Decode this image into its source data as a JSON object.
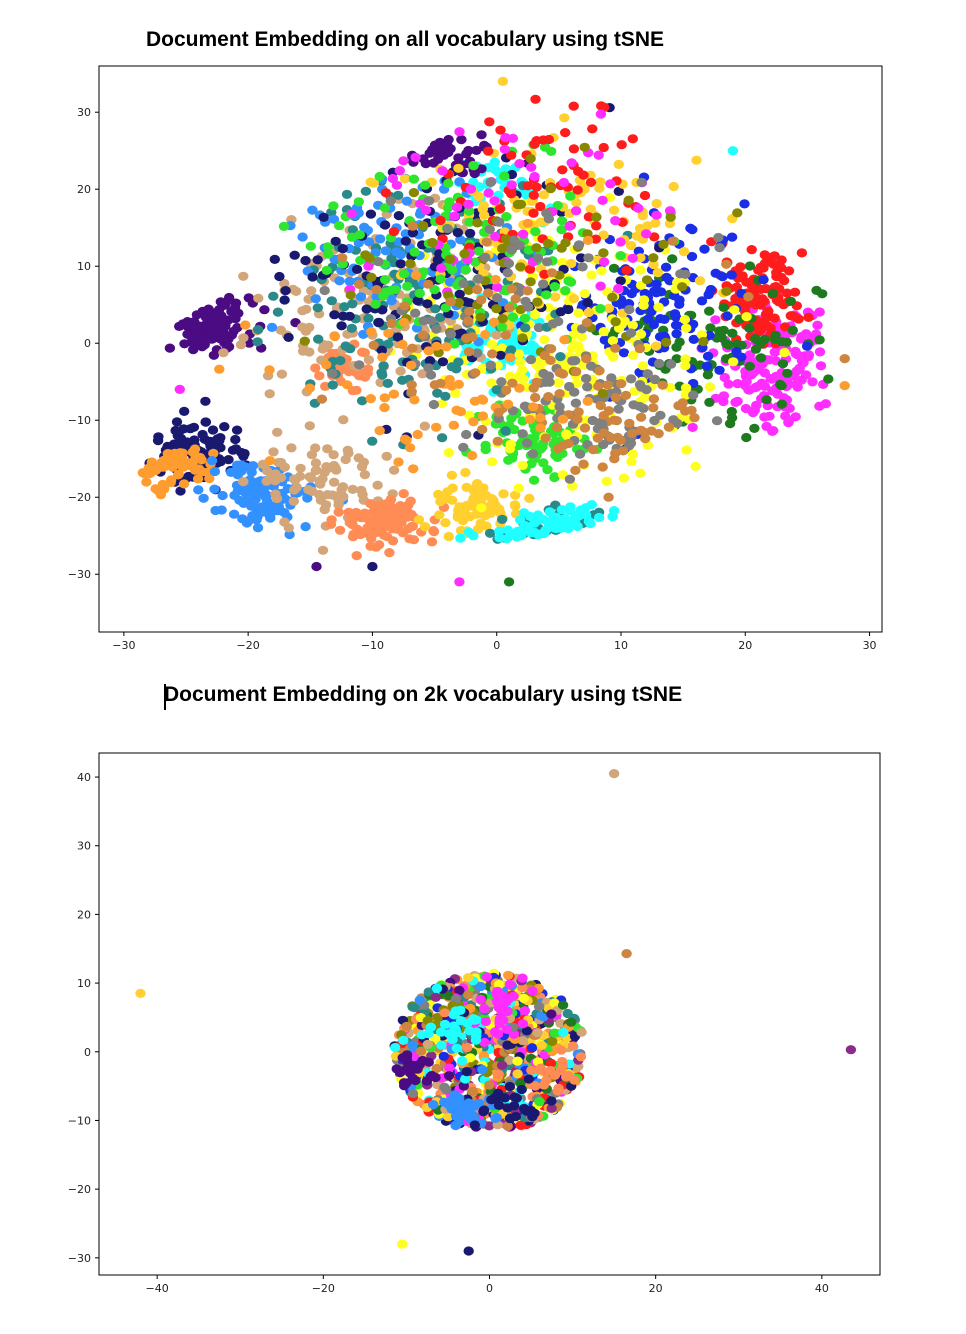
{
  "document": {
    "title_1": "Document Embedding on all vocabulary using tSNE",
    "title_2": "Document Embedding on 2k vocabulary using tSNE"
  },
  "palette": [
    "#ff1c1c",
    "#ffff1f",
    "#1a2ee6",
    "#1f7a1f",
    "#20ffff",
    "#ff2dff",
    "#ffd02e",
    "#808080",
    "#d2a679",
    "#191970",
    "#3390ff",
    "#ff8c55",
    "#2ee62e",
    "#4b0b82",
    "#2a8a8a",
    "#ff9c30",
    "#cd853f",
    "#888800",
    "#8b2c8b"
  ],
  "chart_data": [
    {
      "type": "scatter",
      "title": "Document Embedding on all vocabulary using tSNE",
      "xlabel": "",
      "ylabel": "",
      "xlim": [
        -32,
        31
      ],
      "ylim": [
        -37.5,
        36
      ],
      "xticks": [
        -30,
        -20,
        -10,
        0,
        10,
        20,
        30
      ],
      "yticks": [
        -30,
        -20,
        -10,
        0,
        10,
        20,
        30
      ],
      "grid": false,
      "legend": "none",
      "clusters": [
        {
          "color": "#4b0b82",
          "center": [
            -23,
            2
          ],
          "spread": [
            2.5,
            2.5
          ],
          "n": 110
        },
        {
          "color": "#191970",
          "center": [
            -24,
            -14
          ],
          "spread": [
            3,
            3
          ],
          "n": 110
        },
        {
          "color": "#ff9c30",
          "center": [
            -26,
            -16
          ],
          "spread": [
            2.5,
            2.0
          ],
          "n": 60
        },
        {
          "color": "#3390ff",
          "center": [
            -19,
            -20
          ],
          "spread": [
            3,
            3
          ],
          "n": 120
        },
        {
          "color": "#d2a679",
          "center": [
            -14,
            -18
          ],
          "spread": [
            4,
            4
          ],
          "n": 80
        },
        {
          "color": "#ff8c55",
          "center": [
            -9,
            -23
          ],
          "spread": [
            2.5,
            2.5
          ],
          "n": 110
        },
        {
          "color": "#ff8c55",
          "center": [
            -12,
            -3
          ],
          "spread": [
            1.6,
            2
          ],
          "n": 40
        },
        {
          "color": "#ffd02e",
          "center": [
            -2,
            -21
          ],
          "spread": [
            2.5,
            2.5
          ],
          "n": 70
        },
        {
          "color": "#2a8a8a",
          "center": [
            6,
            -28
          ],
          "spread": [
            4,
            3
          ],
          "n": 110
        },
        {
          "color": "#20ffff",
          "center": [
            6,
            -27
          ],
          "spread": [
            4,
            3
          ],
          "n": 90
        },
        {
          "color": "#ff2dff",
          "center": [
            22,
            -3
          ],
          "spread": [
            3,
            6
          ],
          "n": 160
        },
        {
          "color": "#ff1c1c",
          "center": [
            21,
            6
          ],
          "spread": [
            2.5,
            5
          ],
          "n": 110
        },
        {
          "color": "#20ffff",
          "center": [
            0,
            0
          ],
          "spread": [
            3,
            3
          ],
          "n": 70
        },
        {
          "color": "#2ee62e",
          "center": [
            3,
            -13
          ],
          "spread": [
            3,
            3
          ],
          "n": 80
        },
        {
          "color": "#1f7a1f",
          "center": [
            18,
            0
          ],
          "spread": [
            5,
            8
          ],
          "n": 90
        },
        {
          "color": "#1a2ee6",
          "center": [
            13,
            5
          ],
          "spread": [
            5,
            8
          ],
          "n": 130
        },
        {
          "color": "#ffff1f",
          "center": [
            5,
            0
          ],
          "spread": [
            9,
            12
          ],
          "n": 220
        },
        {
          "color": "#808080",
          "center": [
            8,
            -8
          ],
          "spread": [
            6,
            6
          ],
          "n": 80
        },
        {
          "color": "#cd853f",
          "center": [
            8,
            -10
          ],
          "spread": [
            5,
            5
          ],
          "n": 60
        },
        {
          "color": "#20ffff",
          "center": [
            0,
            21
          ],
          "spread": [
            3,
            2
          ],
          "n": 40
        },
        {
          "color": "#d2a679",
          "center": [
            -10,
            5
          ],
          "spread": [
            7,
            9
          ],
          "n": 150
        },
        {
          "color": "#2a8a8a",
          "center": [
            -6,
            6
          ],
          "spread": [
            8,
            10
          ],
          "n": 150
        },
        {
          "color": "#3390ff",
          "center": [
            -8,
            12
          ],
          "spread": [
            8,
            8
          ],
          "n": 90
        },
        {
          "color": "#191970",
          "center": [
            -5,
            10
          ],
          "spread": [
            9,
            10
          ],
          "n": 120
        },
        {
          "color": "#4b0b82",
          "center": [
            -4,
            25
          ],
          "spread": [
            3,
            2
          ],
          "n": 40
        },
        {
          "color": "#ffd02e",
          "center": [
            4,
            15
          ],
          "spread": [
            9,
            10
          ],
          "n": 110
        },
        {
          "color": "#2ee62e",
          "center": [
            -2,
            12
          ],
          "spread": [
            9,
            9
          ],
          "n": 110
        },
        {
          "color": "#ff1c1c",
          "center": [
            4,
            20
          ],
          "spread": [
            8,
            8
          ],
          "n": 70
        },
        {
          "color": "#ff2dff",
          "center": [
            1,
            18
          ],
          "spread": [
            9,
            9
          ],
          "n": 60
        },
        {
          "color": "#888800",
          "center": [
            2,
            8
          ],
          "spread": [
            10,
            10
          ],
          "n": 70
        },
        {
          "color": "#808080",
          "center": [
            0,
            5
          ],
          "spread": [
            10,
            10
          ],
          "n": 70
        },
        {
          "color": "#ff9c30",
          "center": [
            -5,
            -5
          ],
          "spread": [
            9,
            9
          ],
          "n": 60
        },
        {
          "color": "#cd853f",
          "center": [
            0,
            2
          ],
          "spread": [
            10,
            10
          ],
          "n": 50
        }
      ],
      "points": [
        {
          "x": -25.5,
          "y": -6,
          "color": "#ff2dff"
        },
        {
          "x": -14.5,
          "y": -29,
          "color": "#4b0b82"
        },
        {
          "x": -10,
          "y": -29,
          "color": "#191970"
        },
        {
          "x": 28,
          "y": -2,
          "color": "#cd853f"
        },
        {
          "x": 28,
          "y": -5.5,
          "color": "#ff9c30"
        },
        {
          "x": 19,
          "y": 25,
          "color": "#20ffff"
        },
        {
          "x": 16,
          "y": -16,
          "color": "#ffff1f"
        },
        {
          "x": 9,
          "y": -20,
          "color": "#cd853f"
        },
        {
          "x": -3,
          "y": -31,
          "color": "#ff2dff"
        },
        {
          "x": 1,
          "y": -31,
          "color": "#1f7a1f"
        },
        {
          "x": 0.5,
          "y": 34,
          "color": "#ffd02e"
        }
      ]
    },
    {
      "type": "scatter",
      "title": "Document Embedding on 2k vocabulary using tSNE",
      "xlabel": "",
      "ylabel": "",
      "xlim": [
        -47,
        47
      ],
      "ylim": [
        -32.5,
        43.5
      ],
      "xticks": [
        -40,
        -20,
        0,
        20,
        40
      ],
      "yticks": [
        -30,
        -20,
        -10,
        0,
        10,
        20,
        30,
        40
      ],
      "grid": false,
      "legend": "none",
      "disk": {
        "center": [
          0,
          0
        ],
        "radius": 11.5,
        "n": 850
      },
      "disk_clusters": [
        {
          "color": "#4b0b82",
          "center": [
            -9,
            -3
          ],
          "spread": [
            1.5,
            1.5
          ],
          "n": 30
        },
        {
          "color": "#3390ff",
          "center": [
            -3,
            -9
          ],
          "spread": [
            1.8,
            1.5
          ],
          "n": 40
        },
        {
          "color": "#ff2dff",
          "center": [
            1,
            6
          ],
          "spread": [
            1.8,
            2
          ],
          "n": 30
        },
        {
          "color": "#ff8c55",
          "center": [
            8,
            -4
          ],
          "spread": [
            1.8,
            1.8
          ],
          "n": 25
        },
        {
          "color": "#191970",
          "center": [
            3,
            -8
          ],
          "spread": [
            2,
            1.8
          ],
          "n": 30
        },
        {
          "color": "#20ffff",
          "center": [
            -4,
            4
          ],
          "spread": [
            2,
            2
          ],
          "n": 25
        }
      ],
      "points": [
        {
          "x": 15,
          "y": 40.5,
          "color": "#d2a679"
        },
        {
          "x": 16.5,
          "y": 14.3,
          "color": "#cd853f"
        },
        {
          "x": -42,
          "y": 8.5,
          "color": "#ffd02e"
        },
        {
          "x": 43.5,
          "y": 0.3,
          "color": "#8b2c8b"
        },
        {
          "x": -10.5,
          "y": -28,
          "color": "#ffff1f"
        },
        {
          "x": -2.5,
          "y": -29,
          "color": "#191970"
        }
      ]
    }
  ]
}
